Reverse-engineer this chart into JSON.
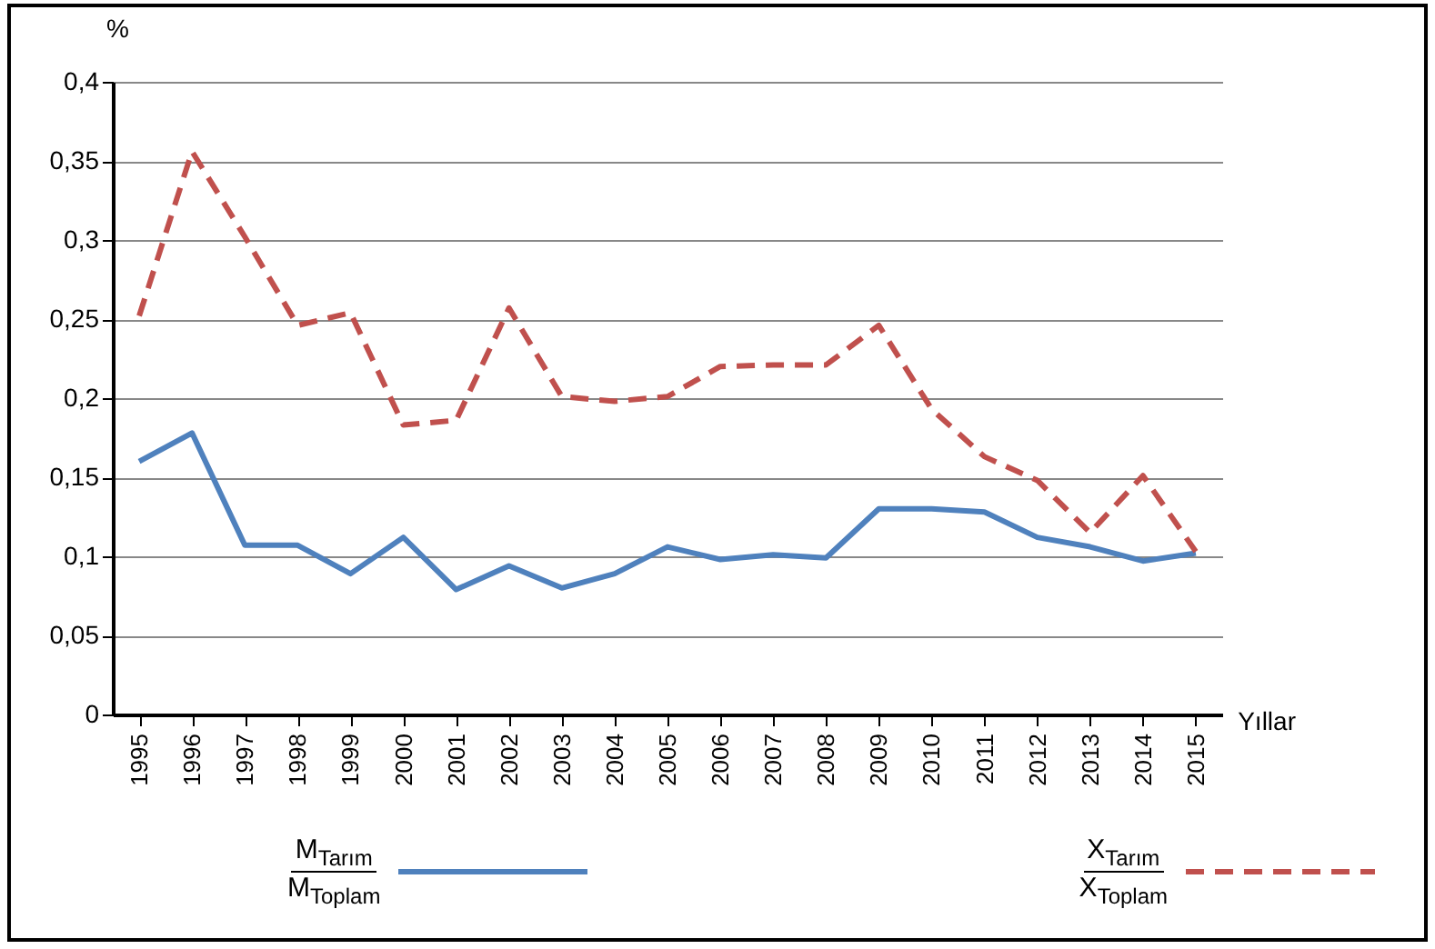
{
  "chart_data": {
    "type": "line",
    "xlabel": "Yıllar",
    "ylabel": "%",
    "categories": [
      "1995",
      "1996",
      "1997",
      "1998",
      "1999",
      "2000",
      "2001",
      "2002",
      "2003",
      "2004",
      "2005",
      "2006",
      "2007",
      "2008",
      "2009",
      "2010",
      "2011",
      "2012",
      "2013",
      "2014",
      "2015"
    ],
    "series": [
      {
        "name": "M$_{Tarım}$ M$_{Toplam}$",
        "color": "#4f81bd",
        "line_style": "solid",
        "values": [
          0.16,
          0.178,
          0.107,
          0.107,
          0.089,
          0.112,
          0.079,
          0.094,
          0.08,
          0.089,
          0.106,
          0.098,
          0.101,
          0.099,
          0.13,
          0.13,
          0.128,
          0.112,
          0.106,
          0.097,
          0.102
        ]
      },
      {
        "name": "X$_{Tarım}$ X$_{Toplam}$",
        "color": "#c0504d",
        "line_style": "dashed",
        "values": [
          0.252,
          0.356,
          0.302,
          0.246,
          0.254,
          0.183,
          0.186,
          0.257,
          0.201,
          0.198,
          0.201,
          0.22,
          0.221,
          0.221,
          0.246,
          0.193,
          0.163,
          0.148,
          0.115,
          0.151,
          0.103
        ]
      }
    ],
    "ylim": [
      0,
      0.4
    ],
    "yticks": [
      0,
      {
        "value": 0.05,
        "label": "0,05"
      },
      {
        "value": 0.1,
        "label": "0,1"
      },
      {
        "value": 0.15,
        "label": "0,15"
      },
      {
        "value": 0.2,
        "label": "0,2"
      },
      {
        "value": 0.25,
        "label": "0,25"
      },
      {
        "value": 0.3,
        "label": "0,3"
      },
      {
        "value": 0.35,
        "label": "0,35"
      },
      {
        "value": 0.4,
        "label": "0,4"
      }
    ],
    "grid": "y",
    "legend": "bottom",
    "marker": "none"
  }
}
